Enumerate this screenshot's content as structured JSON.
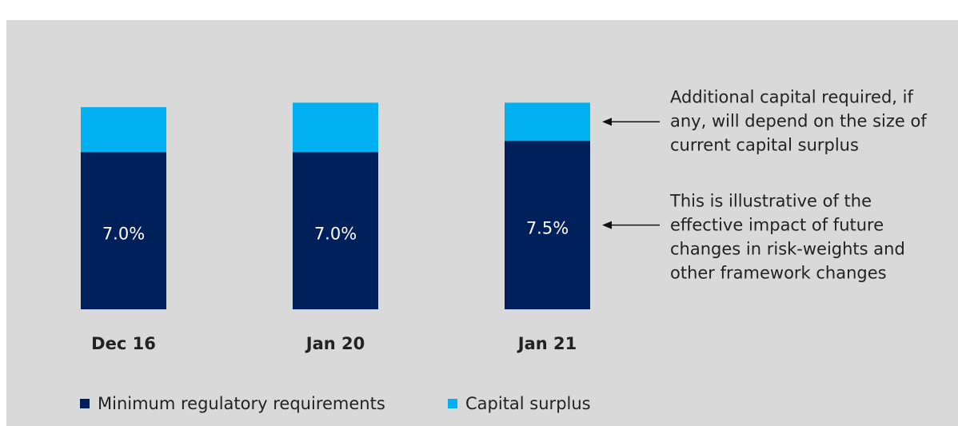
{
  "chart_data": {
    "type": "stacked_bar",
    "categories": [
      "Dec 16",
      "Jan 20",
      "Jan 21"
    ],
    "series": [
      {
        "name": "Minimum regulatory requirements",
        "color": "#00205b",
        "values": [
          7.0,
          7.0,
          7.5
        ],
        "value_labels": [
          "7.0%",
          "7.0%",
          "7.5%"
        ]
      },
      {
        "name": "Capital surplus",
        "color": "#00b0f0",
        "values": [
          2.0,
          2.2,
          1.7
        ]
      }
    ],
    "annotations": [
      [
        "Additional capital required, if",
        "any, will depend on the size of",
        "current capital surplus"
      ],
      [
        "This is illustrative of the",
        "effective impact of future",
        "changes in risk-weights and",
        "other framework changes"
      ]
    ]
  }
}
